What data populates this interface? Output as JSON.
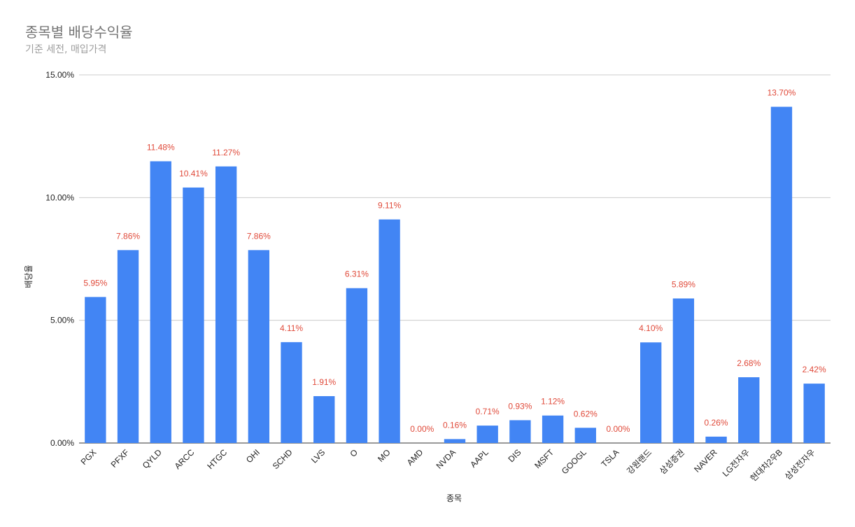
{
  "chart_data": {
    "type": "bar",
    "title": "종목별 배당수익율",
    "subtitle": "기준 세전, 매입가격",
    "xlabel": "종목",
    "ylabel": "배당율",
    "ylim": [
      0,
      15
    ],
    "yticks": [
      "0.00%",
      "5.00%",
      "10.00%",
      "15.00%"
    ],
    "ytick_values": [
      0,
      5,
      10,
      15
    ],
    "categories": [
      "PGX",
      "PFXF",
      "QYLD",
      "ARCC",
      "HTGC",
      "OHI",
      "SCHD",
      "LVS",
      "O",
      "MO",
      "AMD",
      "NVDA",
      "AAPL",
      "DIS",
      "MSFT",
      "GOOGL",
      "TSLA",
      "강원랜드",
      "삼성증권",
      "NAVER",
      "LG전자우",
      "현대차2우B",
      "삼성전자우"
    ],
    "values": [
      5.95,
      7.86,
      11.48,
      10.41,
      11.27,
      7.86,
      4.11,
      1.91,
      6.31,
      9.11,
      0.0,
      0.16,
      0.71,
      0.93,
      1.12,
      0.62,
      0.0,
      4.1,
      5.89,
      0.26,
      2.68,
      13.7,
      2.42
    ],
    "data_labels": [
      "5.95%",
      "7.86%",
      "11.48%",
      "10.41%",
      "11.27%",
      "7.86%",
      "4.11%",
      "1.91%",
      "6.31%",
      "9.11%",
      "0.00%",
      "0.16%",
      "0.71%",
      "0.93%",
      "1.12%",
      "0.62%",
      "0.00%",
      "4.10%",
      "5.89%",
      "0.26%",
      "2.68%",
      "13.70%",
      "2.42%"
    ],
    "grid": true,
    "legend": "none",
    "bar_color": "#4285f4",
    "label_color": "#e04a3a"
  }
}
